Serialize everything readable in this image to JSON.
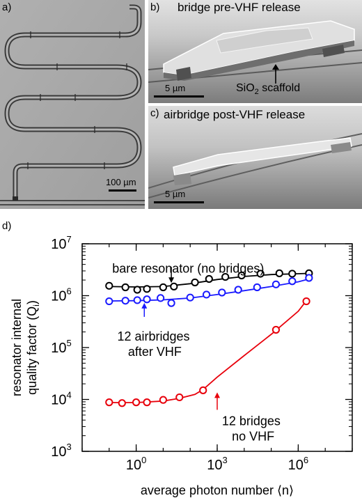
{
  "panel_a": {
    "label": "a)",
    "scalebar_label": "100 µm"
  },
  "panel_b": {
    "label": "b)",
    "title": "bridge pre-VHF release",
    "scalebar_label": "5 µm",
    "annotation_prefix": "SiO",
    "annotation_sub": "2",
    "annotation_suffix": " scaffold"
  },
  "panel_c": {
    "label": "c)",
    "title": "airbridge post-VHF release",
    "scalebar_label": "5 µm"
  },
  "panel_d": {
    "label": "d)"
  },
  "chart_data": {
    "type": "scatter",
    "xlabel": "average photon number ⟨n⟩",
    "ylabel_line1": "resonator internal",
    "ylabel_line2": "quality factor (Q",
    "ylabel_sub": "i",
    "ylabel_close": ")",
    "xscale": "log",
    "yscale": "log",
    "xlim": [
      0.01,
      100000000
    ],
    "ylim": [
      1000,
      10000000
    ],
    "xticks": [
      {
        "value": 1,
        "base": "10",
        "exp": "0"
      },
      {
        "value": 1000,
        "base": "10",
        "exp": "3"
      },
      {
        "value": 1000000,
        "base": "10",
        "exp": "6"
      }
    ],
    "yticks": [
      {
        "value": 1000,
        "base": "10",
        "exp": "3"
      },
      {
        "value": 10000,
        "base": "10",
        "exp": "4"
      },
      {
        "value": 100000,
        "base": "10",
        "exp": "5"
      },
      {
        "value": 1000000,
        "base": "10",
        "exp": "6"
      },
      {
        "value": 10000000,
        "base": "10",
        "exp": "7"
      }
    ],
    "series": [
      {
        "label": "bare resonator (no bridges)",
        "color": "#000000",
        "x": [
          0.1,
          0.4,
          1.1,
          2.5,
          10,
          25,
          150,
          500,
          2000,
          8000,
          40000,
          200000,
          600000,
          2500000
        ],
        "y": [
          1550000,
          1450000,
          1300000,
          1350000,
          1450000,
          1500000,
          1800000,
          2100000,
          2300000,
          2450000,
          2650000,
          2700000,
          2650000,
          2700000
        ],
        "fit_x": [
          0.1,
          1,
          10,
          100,
          1000,
          10000,
          100000,
          1000000,
          3000000
        ],
        "fit_y": [
          1500000,
          1470000,
          1500000,
          1700000,
          2050000,
          2350000,
          2550000,
          2650000,
          2700000
        ]
      },
      {
        "label": "12 airbridges after VHF",
        "color": "#1a1aff",
        "x": [
          0.1,
          0.4,
          1.1,
          2.5,
          8,
          20,
          100,
          400,
          1500,
          6000,
          30000,
          150000,
          600000,
          2500000
        ],
        "y": [
          780000,
          800000,
          820000,
          850000,
          900000,
          720000,
          920000,
          1050000,
          1150000,
          1300000,
          1450000,
          1650000,
          1900000,
          2200000
        ],
        "fit_x": [
          0.1,
          1,
          10,
          100,
          1000,
          10000,
          100000,
          1000000,
          3000000
        ],
        "fit_y": [
          790000,
          800000,
          830000,
          900000,
          1050000,
          1250000,
          1500000,
          1850000,
          2150000
        ]
      },
      {
        "label": "12 bridges no VHF",
        "color": "#e8000b",
        "x": [
          0.1,
          0.3,
          1,
          2.5,
          10,
          40,
          300,
          150000,
          2000000
        ],
        "y": [
          8800,
          8500,
          8800,
          8800,
          9800,
          11000,
          15000,
          220000,
          780000
        ],
        "fit_x": [
          0.1,
          1,
          10,
          40,
          150,
          300,
          1000,
          10000,
          100000,
          1000000,
          2000000
        ],
        "fit_y": [
          8700,
          8700,
          9300,
          10500,
          12500,
          15500,
          27000,
          70000,
          180000,
          500000,
          800000
        ]
      }
    ],
    "annotations": {
      "bare_label": "bare resonator (no bridges)",
      "air_label_line1": "12 airbridges",
      "air_label_line2": "after VHF",
      "nov_label_line1": "12 bridges",
      "nov_label_line2": "no VHF"
    }
  }
}
